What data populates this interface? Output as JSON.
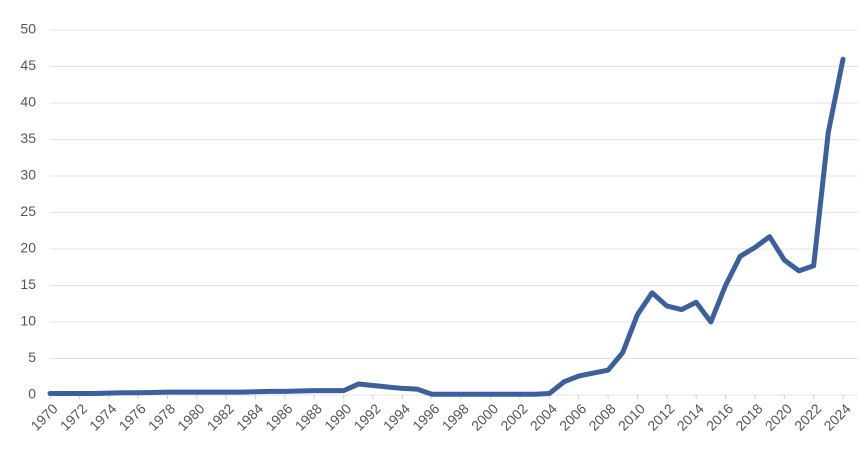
{
  "chart_data": {
    "type": "line",
    "x": [
      1970,
      1971,
      1972,
      1973,
      1974,
      1975,
      1976,
      1977,
      1978,
      1979,
      1980,
      1981,
      1982,
      1983,
      1984,
      1985,
      1986,
      1987,
      1988,
      1989,
      1990,
      1991,
      1992,
      1993,
      1994,
      1995,
      1996,
      1997,
      1998,
      1999,
      2000,
      2001,
      2002,
      2003,
      2004,
      2005,
      2006,
      2007,
      2008,
      2009,
      2010,
      2011,
      2012,
      2013,
      2014,
      2015,
      2016,
      2017,
      2018,
      2019,
      2020,
      2021,
      2022,
      2023,
      2024
    ],
    "series": [
      {
        "color": "#3c5f9e",
        "values": [
          0.2,
          0.2,
          0.2,
          0.2,
          0.25,
          0.3,
          0.3,
          0.35,
          0.4,
          0.4,
          0.4,
          0.4,
          0.4,
          0.4,
          0.45,
          0.5,
          0.5,
          0.55,
          0.6,
          0.6,
          0.6,
          1.5,
          1.3,
          1.1,
          0.9,
          0.8,
          0.1,
          0.1,
          0.1,
          0.1,
          0.1,
          0.1,
          0.1,
          0.1,
          0.2,
          1.8,
          2.6,
          3.0,
          3.4,
          5.8,
          11,
          14,
          12.2,
          11.7,
          12.7,
          10,
          15,
          19,
          20.2,
          21.7,
          18.5,
          17,
          17.7,
          36,
          46
        ]
      }
    ],
    "xlim": [
      1970,
      2024
    ],
    "xticks": [
      1970,
      1972,
      1974,
      1976,
      1978,
      1980,
      1982,
      1984,
      1986,
      1988,
      1990,
      1992,
      1994,
      1996,
      1998,
      2000,
      2002,
      2004,
      2006,
      2008,
      2010,
      2012,
      2014,
      2016,
      2018,
      2020,
      2022,
      2024
    ],
    "ylim": [
      0,
      50
    ],
    "yticks": [
      0,
      5,
      10,
      15,
      20,
      25,
      30,
      35,
      40,
      45,
      50
    ],
    "grid": true
  }
}
